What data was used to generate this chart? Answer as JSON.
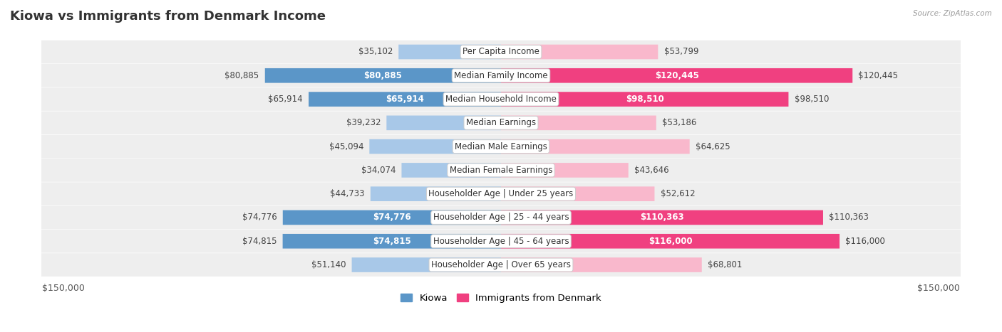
{
  "title": "Kiowa vs Immigrants from Denmark Income",
  "source": "Source: ZipAtlas.com",
  "categories": [
    "Per Capita Income",
    "Median Family Income",
    "Median Household Income",
    "Median Earnings",
    "Median Male Earnings",
    "Median Female Earnings",
    "Householder Age | Under 25 years",
    "Householder Age | 25 - 44 years",
    "Householder Age | 45 - 64 years",
    "Householder Age | Over 65 years"
  ],
  "kiowa_values": [
    35102,
    80885,
    65914,
    39232,
    45094,
    34074,
    44733,
    74776,
    74815,
    51140
  ],
  "denmark_values": [
    53799,
    120445,
    98510,
    53186,
    64625,
    43646,
    52612,
    110363,
    116000,
    68801
  ],
  "kiowa_color_light": "#a8c8e8",
  "kiowa_color_dark": "#5b96c8",
  "denmark_color_light": "#f9b8cc",
  "denmark_color_dark": "#f04080",
  "max_value": 150000,
  "row_bg_color": "#eeeeee",
  "title_fontsize": 13,
  "tick_fontsize": 9,
  "value_fontsize": 8.5,
  "category_fontsize": 8.5,
  "legend_fontsize": 9.5,
  "background_color": "#ffffff",
  "kiowa_strong_threshold": 65000,
  "denmark_strong_threshold": 95000
}
